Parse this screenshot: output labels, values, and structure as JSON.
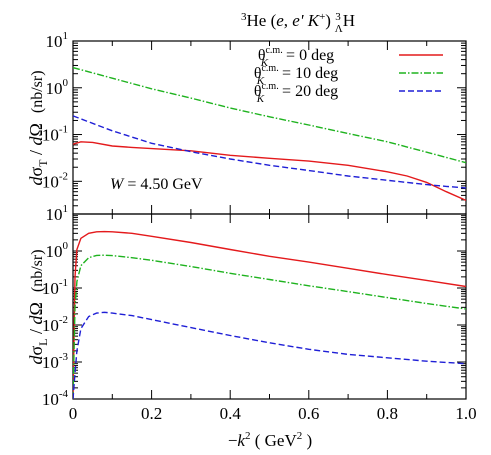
{
  "title": {
    "sup1": "3",
    "part1": "He (",
    "italic1": "e",
    "part2": ", ",
    "italic2": "e'",
    "part3": " ",
    "italic3": "K",
    "sup2": "+",
    "part4": ") ",
    "sup3": "3",
    "sub3": "Λ",
    "part5": "H"
  },
  "chart_data": [
    {
      "type": "line",
      "panel": "top",
      "ylabel": {
        "d1": "d",
        "sigma": "σ",
        "sub": "T",
        "slash": " / ",
        "d2": "d",
        "omega": "Ω",
        "unit": "(nb/sr)"
      },
      "yscale": "log",
      "ylim": [
        0.002,
        10
      ],
      "xlim": [
        0,
        1
      ],
      "y_ticks": [
        {
          "v": 10,
          "base": "10",
          "exp": "1"
        },
        {
          "v": 1,
          "base": "10",
          "exp": "0"
        },
        {
          "v": 0.1,
          "base": "10",
          "exp": "-1"
        },
        {
          "v": 0.01,
          "base": "10",
          "exp": "-2"
        }
      ],
      "annotation": {
        "var": "W",
        "text": " = 4.50 GeV"
      },
      "legend_position": "top-right",
      "series": [
        {
          "theta_value": "0 deg",
          "color": "#e41a1c",
          "dash": "solid",
          "x": [
            0,
            0.02,
            0.05,
            0.1,
            0.15,
            0.2,
            0.3,
            0.4,
            0.5,
            0.6,
            0.7,
            0.8,
            0.85,
            0.9,
            0.95,
            1.0
          ],
          "y": [
            0.062,
            0.07,
            0.068,
            0.057,
            0.053,
            0.05,
            0.045,
            0.036,
            0.031,
            0.027,
            0.022,
            0.016,
            0.013,
            0.0095,
            0.006,
            0.0039
          ]
        },
        {
          "theta_value": "10 deg",
          "color": "#1fb31f",
          "dash": "dashdot",
          "x": [
            0,
            0.1,
            0.2,
            0.3,
            0.4,
            0.5,
            0.6,
            0.7,
            0.8,
            0.9,
            1.0
          ],
          "y": [
            2.7,
            1.6,
            0.95,
            0.6,
            0.37,
            0.24,
            0.16,
            0.105,
            0.07,
            0.042,
            0.025
          ]
        },
        {
          "theta_value": "20 deg",
          "color": "#1f1fd6",
          "dash": "dashed",
          "x": [
            0,
            0.1,
            0.2,
            0.3,
            0.4,
            0.5,
            0.6,
            0.7,
            0.8,
            0.9,
            0.95,
            1.0
          ],
          "y": [
            0.25,
            0.12,
            0.065,
            0.043,
            0.03,
            0.022,
            0.017,
            0.013,
            0.0105,
            0.0085,
            0.0078,
            0.0072
          ]
        }
      ]
    },
    {
      "type": "line",
      "panel": "bottom",
      "ylabel": {
        "d1": "d",
        "sigma": "σ",
        "sub": "L",
        "slash": " / ",
        "d2": "d",
        "omega": "Ω",
        "unit": "(nb/sr)"
      },
      "yscale": "log",
      "ylim": [
        0.0001,
        10
      ],
      "xlim": [
        0,
        1
      ],
      "xlabel": {
        "minus": "−",
        "k": "k",
        "exp": "2",
        "unit_pre": " ( GeV",
        "unit_exp": "2",
        "unit_post": " )"
      },
      "x_ticks": [
        "0",
        "0.2",
        "0.4",
        "0.6",
        "0.8",
        "1.0"
      ],
      "x_tick_values": [
        0,
        0.2,
        0.4,
        0.6,
        0.8,
        1.0
      ],
      "y_ticks": [
        {
          "v": 10,
          "base": "10",
          "exp": "1"
        },
        {
          "v": 1,
          "base": "10",
          "exp": "0"
        },
        {
          "v": 0.1,
          "base": "10",
          "exp": "-1"
        },
        {
          "v": 0.01,
          "base": "10",
          "exp": "-2"
        },
        {
          "v": 0.001,
          "base": "10",
          "exp": "-3"
        },
        {
          "v": 0.0001,
          "base": "10",
          "exp": "-4"
        }
      ],
      "series": [
        {
          "theta_value": "0 deg",
          "color": "#e41a1c",
          "dash": "solid",
          "x": [
            0,
            0.005,
            0.01,
            0.02,
            0.04,
            0.06,
            0.08,
            0.1,
            0.15,
            0.2,
            0.3,
            0.4,
            0.5,
            0.6,
            0.7,
            0.8,
            0.9,
            1.0
          ],
          "y": [
            0.0001,
            0.2,
            1.1,
            2.2,
            3.0,
            3.3,
            3.35,
            3.3,
            3.0,
            2.5,
            1.7,
            1.1,
            0.72,
            0.5,
            0.34,
            0.23,
            0.16,
            0.11
          ]
        },
        {
          "theta_value": "10 deg",
          "color": "#1fb31f",
          "dash": "dashdot",
          "x": [
            0,
            0.005,
            0.01,
            0.02,
            0.04,
            0.06,
            0.08,
            0.1,
            0.15,
            0.2,
            0.3,
            0.4,
            0.5,
            0.6,
            0.7,
            0.8,
            0.9,
            1.0
          ],
          "y": [
            0.0001,
            0.03,
            0.15,
            0.4,
            0.66,
            0.76,
            0.77,
            0.75,
            0.66,
            0.56,
            0.38,
            0.25,
            0.17,
            0.115,
            0.08,
            0.055,
            0.038,
            0.027
          ]
        },
        {
          "theta_value": "20 deg",
          "color": "#1f1fd6",
          "dash": "dashed",
          "x": [
            0,
            0.005,
            0.01,
            0.02,
            0.04,
            0.06,
            0.08,
            0.1,
            0.15,
            0.2,
            0.3,
            0.4,
            0.5,
            0.6,
            0.7,
            0.8,
            0.9,
            1.0
          ],
          "y": [
            0.0001,
            0.0005,
            0.002,
            0.008,
            0.017,
            0.021,
            0.022,
            0.021,
            0.018,
            0.014,
            0.0085,
            0.0052,
            0.0033,
            0.0022,
            0.0016,
            0.0013,
            0.00105,
            0.0009
          ]
        }
      ]
    }
  ],
  "legend": {
    "theta": "θ",
    "sup": "c.m.",
    "sub": "K",
    "entries": [
      {
        "eq": " = 0 deg"
      },
      {
        "eq": " = 10 deg"
      },
      {
        "eq": " = 20 deg"
      }
    ]
  }
}
